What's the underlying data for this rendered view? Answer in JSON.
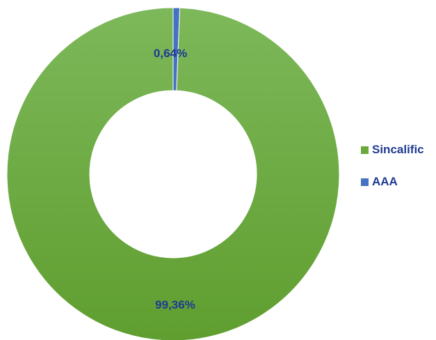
{
  "chart_data": {
    "type": "pie",
    "donut": true,
    "categories": [
      "Sincalific",
      "AAA"
    ],
    "values": [
      99.36,
      0.64
    ],
    "value_labels": [
      "99,36%",
      "0,64%"
    ],
    "colors": [
      "#6aaa3c",
      "#4472c4"
    ],
    "label_color": "#1f3a93",
    "legend": "right"
  }
}
